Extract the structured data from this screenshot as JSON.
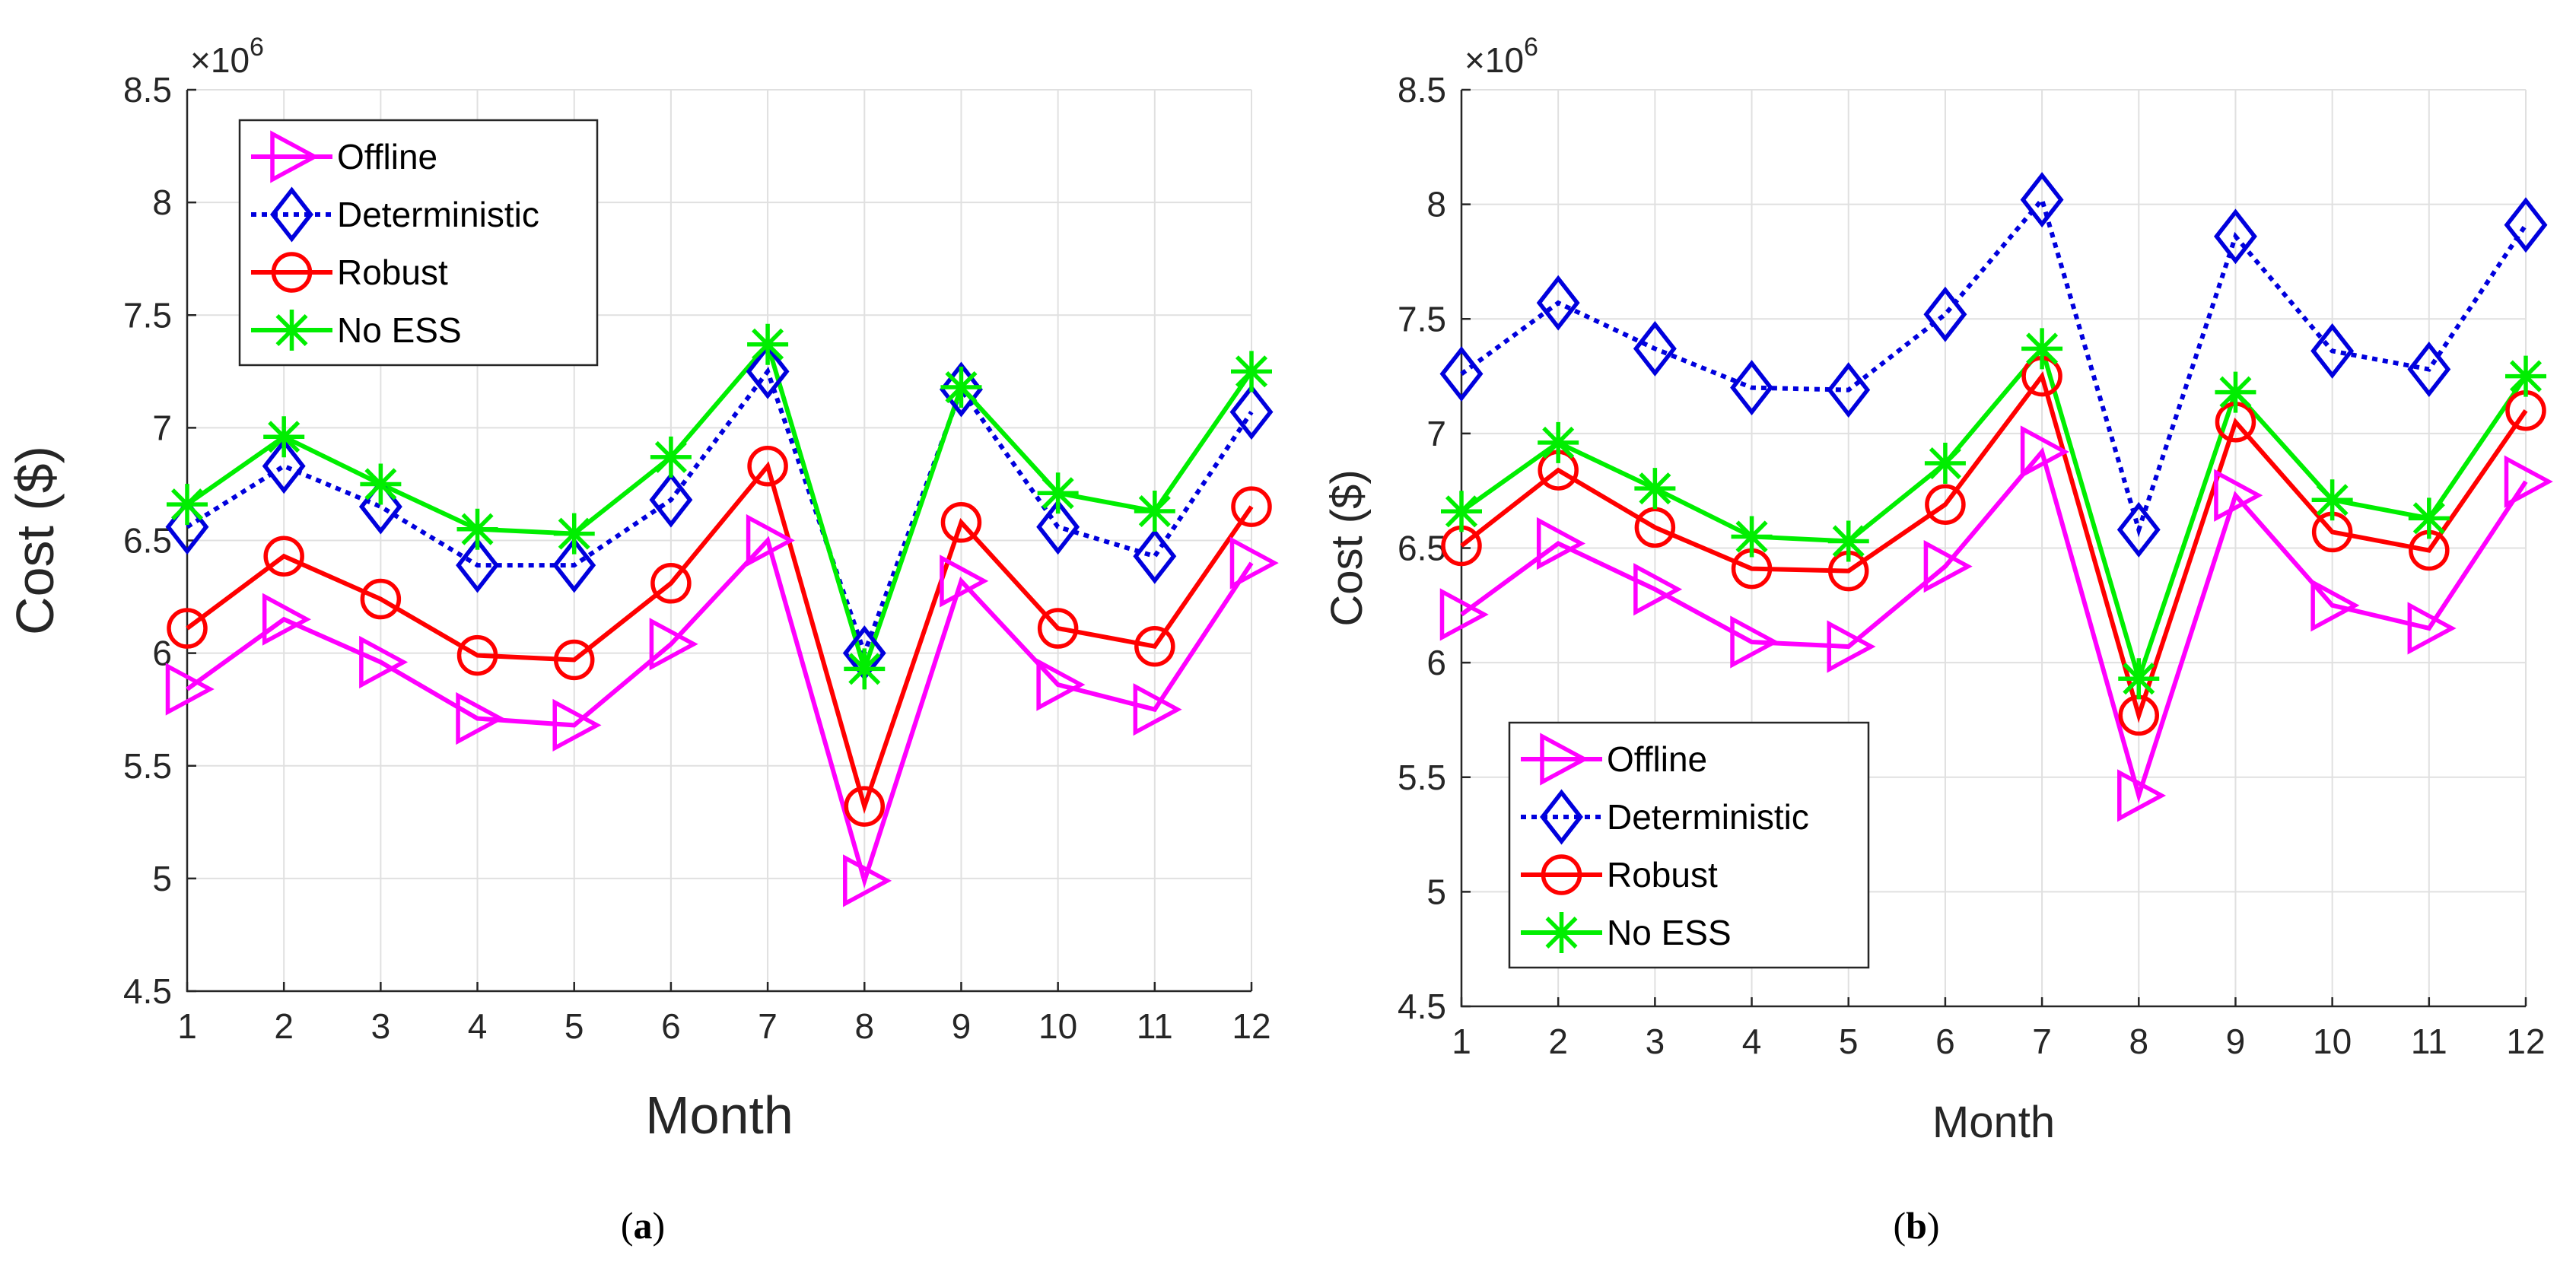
{
  "chart_data": [
    {
      "type": "line",
      "panel": "a",
      "caption": "(a)",
      "caption_letter": "a",
      "xlabel": "Month",
      "ylabel": "Cost ($)",
      "y_exponent_label": "×10",
      "y_exponent_power": "6",
      "xlim": [
        1,
        12
      ],
      "ylim": [
        4.5,
        8.5
      ],
      "x_ticks": [
        "1",
        "2",
        "3",
        "4",
        "5",
        "6",
        "7",
        "8",
        "9",
        "10",
        "11",
        "12"
      ],
      "y_ticks": [
        "4.5",
        "5",
        "5.5",
        "6",
        "6.5",
        "7",
        "7.5",
        "8",
        "8.5"
      ],
      "grid": true,
      "legend_position": "top-left",
      "x": [
        1,
        2,
        3,
        4,
        5,
        6,
        7,
        8,
        9,
        10,
        11,
        12
      ],
      "series": [
        {
          "name": "Offline",
          "color": "#ff00ff",
          "marker": "triangle-right",
          "line": "solid",
          "values": [
            5.84,
            6.15,
            5.96,
            5.71,
            5.68,
            6.04,
            6.5,
            4.99,
            6.32,
            5.86,
            5.75,
            6.4
          ]
        },
        {
          "name": "Deterministic",
          "color": "#0000dd",
          "marker": "diamond",
          "line": "dotted",
          "values": [
            6.56,
            6.83,
            6.65,
            6.39,
            6.39,
            6.68,
            7.25,
            6.0,
            7.17,
            6.56,
            6.43,
            7.07
          ]
        },
        {
          "name": "Robust",
          "color": "#ff0000",
          "marker": "circle",
          "line": "solid",
          "values": [
            6.11,
            6.43,
            6.24,
            5.99,
            5.97,
            6.31,
            6.83,
            5.32,
            6.58,
            6.11,
            6.03,
            6.65
          ]
        },
        {
          "name": "No ESS",
          "color": "#00ee00",
          "marker": "asterisk",
          "line": "solid",
          "values": [
            6.66,
            6.96,
            6.75,
            6.55,
            6.53,
            6.87,
            7.37,
            5.93,
            7.18,
            6.71,
            6.63,
            7.25
          ]
        }
      ]
    },
    {
      "type": "line",
      "panel": "b",
      "caption": "(b)",
      "caption_letter": "b",
      "xlabel": "Month",
      "ylabel": "Cost ($)",
      "y_exponent_label": "×10",
      "y_exponent_power": "6",
      "xlim": [
        1,
        12
      ],
      "ylim": [
        4.5,
        8.5
      ],
      "x_ticks": [
        "1",
        "2",
        "3",
        "4",
        "5",
        "6",
        "7",
        "8",
        "9",
        "10",
        "11",
        "12"
      ],
      "y_ticks": [
        "4.5",
        "5",
        "5.5",
        "6",
        "6.5",
        "7",
        "7.5",
        "8",
        "8.5"
      ],
      "grid": true,
      "legend_position": "bottom-left",
      "x": [
        1,
        2,
        3,
        4,
        5,
        6,
        7,
        8,
        9,
        10,
        11,
        12
      ],
      "series": [
        {
          "name": "Offline",
          "color": "#ff00ff",
          "marker": "triangle-right",
          "line": "solid",
          "values": [
            6.21,
            6.52,
            6.32,
            6.09,
            6.07,
            6.42,
            6.92,
            5.42,
            6.73,
            6.25,
            6.15,
            6.79
          ]
        },
        {
          "name": "Deterministic",
          "color": "#0000dd",
          "marker": "diamond",
          "line": "dotted",
          "values": [
            7.26,
            7.57,
            7.37,
            7.2,
            7.19,
            7.52,
            8.02,
            6.58,
            7.86,
            7.36,
            7.28,
            7.91
          ]
        },
        {
          "name": "Robust",
          "color": "#ff0000",
          "marker": "circle",
          "line": "solid",
          "values": [
            6.51,
            6.84,
            6.59,
            6.41,
            6.4,
            6.69,
            7.25,
            5.77,
            7.05,
            6.57,
            6.49,
            7.1
          ]
        },
        {
          "name": "No ESS",
          "color": "#00ee00",
          "marker": "asterisk",
          "line": "solid",
          "values": [
            6.66,
            6.96,
            6.76,
            6.55,
            6.53,
            6.87,
            7.37,
            5.93,
            7.18,
            6.71,
            6.63,
            7.25
          ]
        }
      ]
    }
  ]
}
